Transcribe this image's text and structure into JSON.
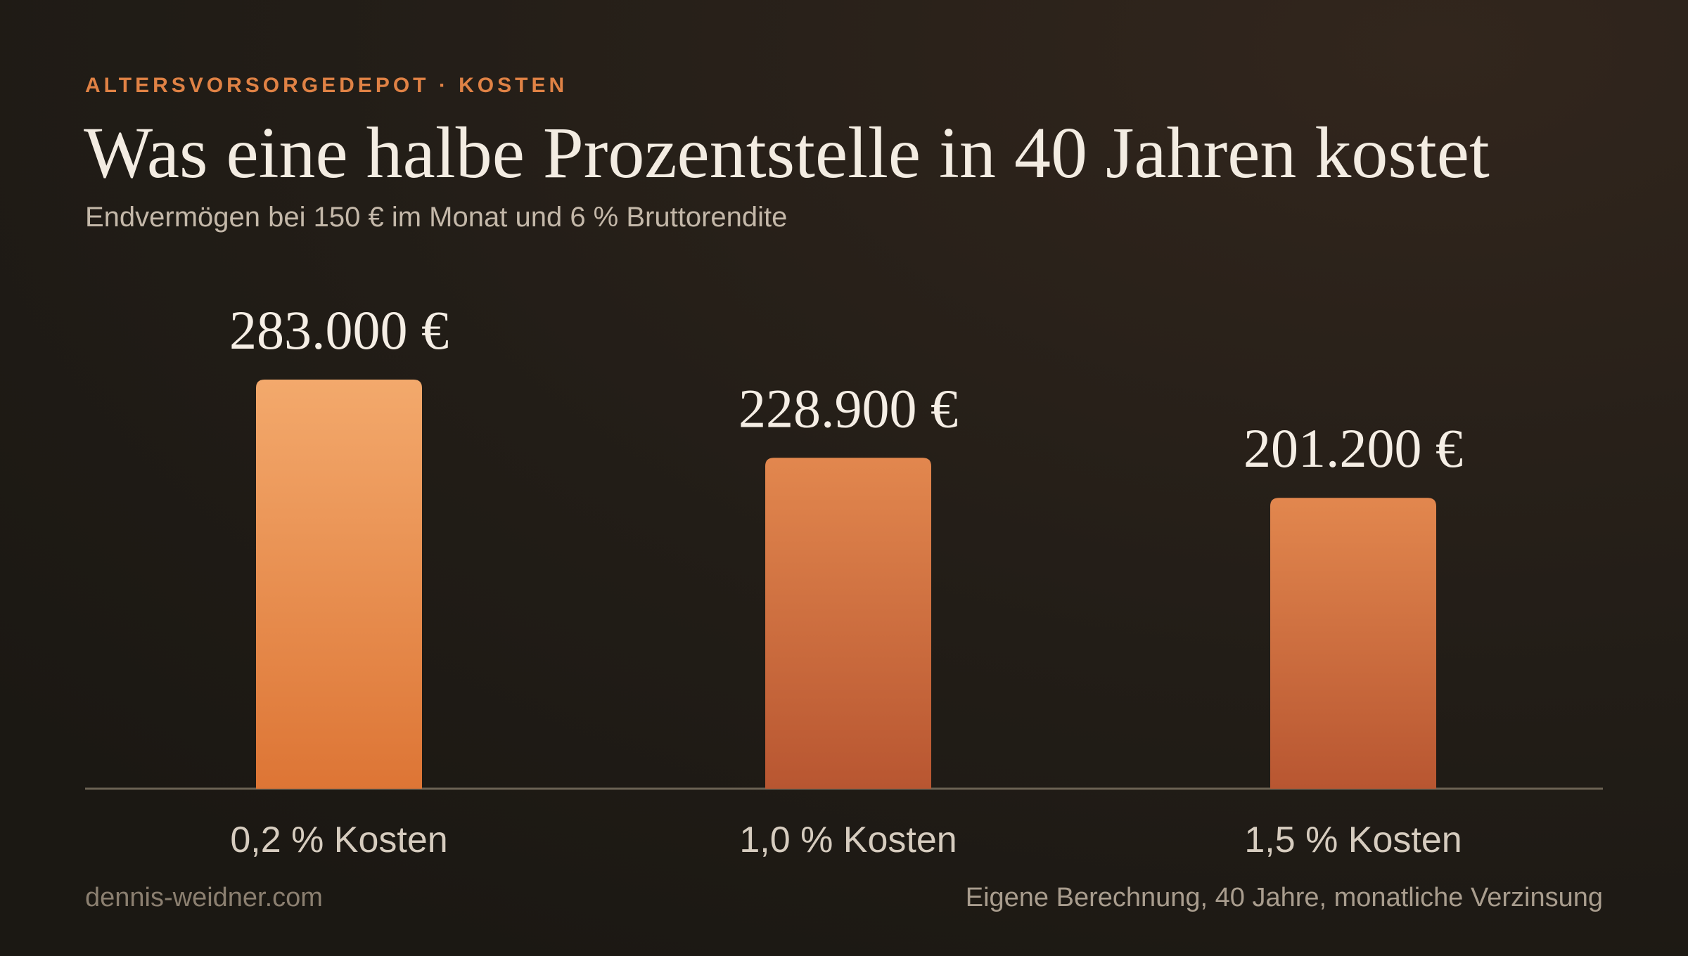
{
  "chart_data": {
    "type": "bar",
    "kicker": "ALTERSVORSORGEDEPOT · KOSTEN",
    "title": "Was eine halbe Prozentstelle in 40 Jahren kostet",
    "subtitle": "Endvermögen bei 150 € im Monat und 6 % Bruttorendite",
    "categories": [
      "0,2 % Kosten",
      "1,0 % Kosten",
      "1,5 % Kosten"
    ],
    "values": [
      283000,
      228900,
      201200
    ],
    "value_labels": [
      "283.000 €",
      "228.900 €",
      "201.200 €"
    ],
    "colors": [
      [
        "#f3a96c",
        "#dd7535"
      ],
      [
        "#e2874e",
        "#b85631"
      ],
      [
        "#e2874e",
        "#b85631"
      ]
    ],
    "credit": "dennis-weidner.com",
    "source": "Eigene Berechnung, 40 Jahre, monatliche Verzinsung"
  }
}
